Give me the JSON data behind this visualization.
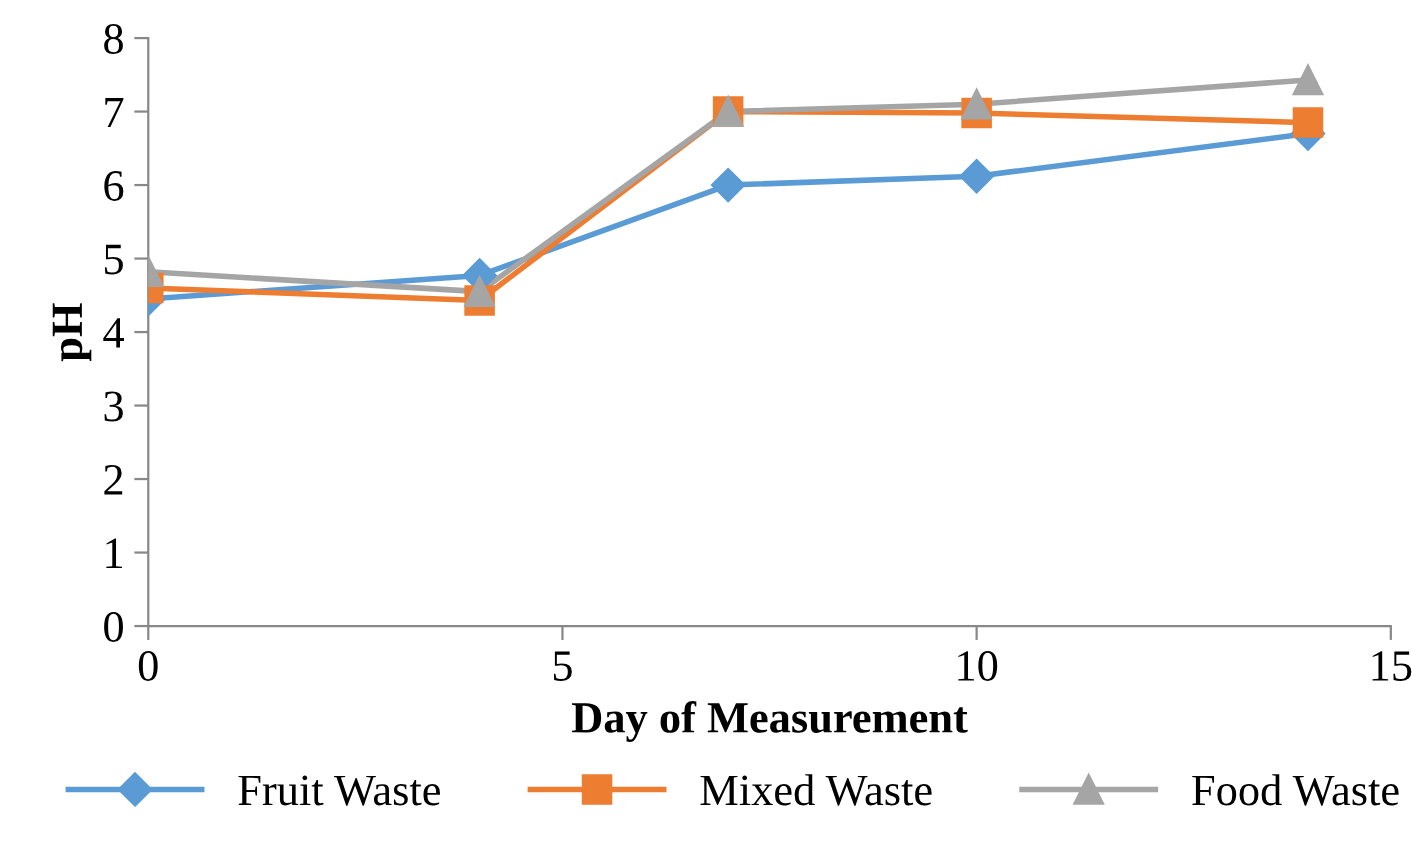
{
  "chart_data": {
    "type": "line",
    "xlabel": "Day of Measurement",
    "ylabel": "pH",
    "x": [
      0,
      4,
      7,
      10,
      14
    ],
    "xlim": [
      0,
      15
    ],
    "xticks": [
      0,
      5,
      10,
      15
    ],
    "ylim": [
      0,
      8
    ],
    "yticks": [
      0,
      1,
      2,
      3,
      4,
      5,
      6,
      7,
      8
    ],
    "grid": false,
    "legend": "bottom",
    "line_style": "solid",
    "series": [
      {
        "name": "Fruit Waste",
        "color": "#5b9bd5",
        "marker": "diamond",
        "values": [
          4.45,
          4.77,
          6.0,
          6.12,
          6.7
        ]
      },
      {
        "name": "Mixed Waste",
        "color": "#ed7d31",
        "marker": "square",
        "values": [
          4.6,
          4.43,
          7.0,
          6.98,
          6.85
        ]
      },
      {
        "name": "Food Waste",
        "color": "#a5a5a5",
        "marker": "triangle",
        "values": [
          4.82,
          4.55,
          7.0,
          7.1,
          7.43
        ]
      }
    ]
  }
}
